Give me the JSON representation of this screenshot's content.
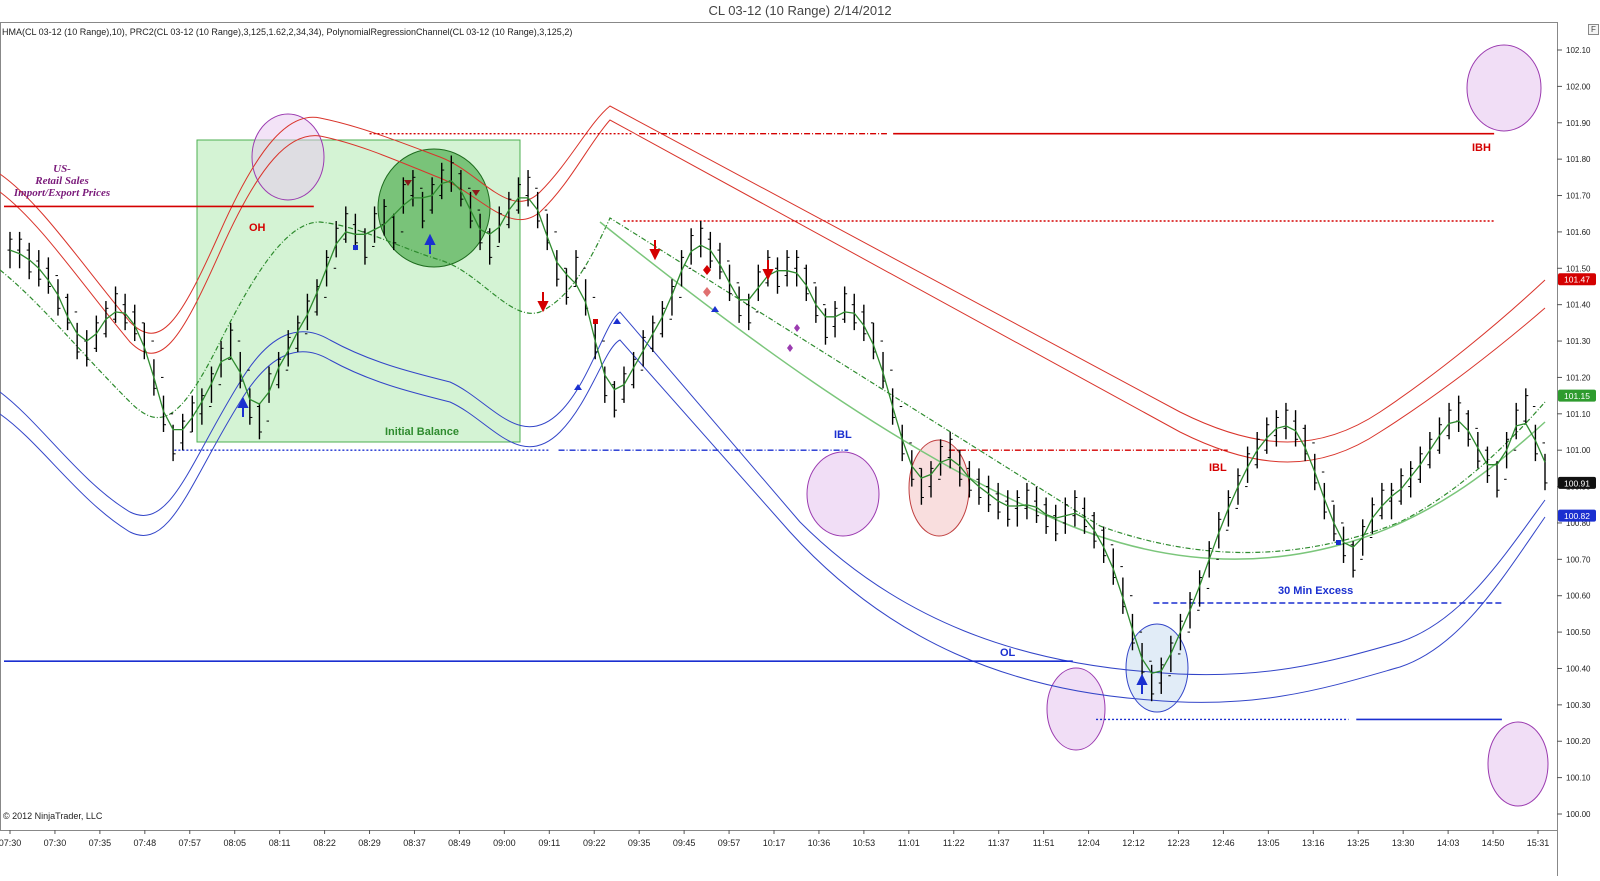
{
  "window": {
    "title": "CL 03-12 (10 Range)  2/14/2012",
    "corner_button": "F"
  },
  "indicator_label": "HMA(CL 03-12 (10 Range),10), PRC2(CL 03-12 (10 Range),3,125,1.62,2,34,34), PolynomialRegressionChannel(CL 03-12 (10 Range),3,125,2)",
  "copyright": "© 2012 NinjaTrader, LLC",
  "colors": {
    "bar": "#000000",
    "hma": "#2e8b2e",
    "upper_channel": "#d9342b",
    "lower_channel": "#3345c8",
    "regression": "#2e8b2e",
    "level_red": "#d40000",
    "level_blue": "#1a2fd0",
    "ib_fill": "#c6efc6",
    "ib_border": "#4caf50",
    "highlight_purple": "#e8c8f0",
    "highlight_green": "#2e9b2e",
    "highlight_red": "#f5c8c8",
    "highlight_blue": "#c8dcf0"
  },
  "chart_data": {
    "type": "bar",
    "subtype": "ohlc-range-bars",
    "instrument": "CL 03-12 (10 Range)",
    "date": "2/14/2012",
    "ylim": [
      100.0,
      102.15
    ],
    "y_ticks": [
      "100.00",
      "100.10",
      "100.20",
      "100.30",
      "100.40",
      "100.50",
      "100.60",
      "100.70",
      "100.80",
      "100.90",
      "101.00",
      "101.10",
      "101.20",
      "101.30",
      "101.40",
      "101.50",
      "101.60",
      "101.70",
      "101.80",
      "101.90",
      "102.00",
      "102.10"
    ],
    "x_ticks": [
      "07:30",
      "07:30",
      "07:35",
      "07:48",
      "07:57",
      "08:05",
      "08:11",
      "08:22",
      "08:29",
      "08:37",
      "08:49",
      "09:00",
      "09:11",
      "09:22",
      "09:35",
      "09:45",
      "09:57",
      "10:17",
      "10:36",
      "10:53",
      "11:01",
      "11:22",
      "11:37",
      "11:51",
      "12:04",
      "12:12",
      "12:23",
      "12:46",
      "13:05",
      "13:16",
      "13:25",
      "13:30",
      "14:03",
      "14:50",
      "15:31"
    ],
    "price_labels": [
      {
        "text": "101.47",
        "value": 101.47,
        "color": "#d40000"
      },
      {
        "text": "101.15",
        "value": 101.15,
        "color": "#2e9b2e"
      },
      {
        "text": "100.91",
        "value": 100.91,
        "color": "#111111"
      },
      {
        "text": "100.82",
        "value": 100.82,
        "color": "#1a2fd0"
      }
    ],
    "bar_centers": [
      101.55,
      101.55,
      101.52,
      101.5,
      101.48,
      101.42,
      101.38,
      101.3,
      101.28,
      101.32,
      101.36,
      101.4,
      101.38,
      101.35,
      101.3,
      101.2,
      101.1,
      101.02,
      101.05,
      101.1,
      101.12,
      101.18,
      101.25,
      101.3,
      101.22,
      101.12,
      101.08,
      101.18,
      101.22,
      101.28,
      101.32,
      101.38,
      101.42,
      101.5,
      101.58,
      101.62,
      101.6,
      101.56,
      101.62,
      101.64,
      101.6,
      101.7,
      101.72,
      101.66,
      101.7,
      101.74,
      101.76,
      101.72,
      101.66,
      101.6,
      101.56,
      101.62,
      101.66,
      101.7,
      101.72,
      101.66,
      101.6,
      101.5,
      101.45,
      101.5,
      101.42,
      101.3,
      101.18,
      101.14,
      101.18,
      101.22,
      101.28,
      101.32,
      101.36,
      101.42,
      101.5,
      101.56,
      101.58,
      101.55,
      101.52,
      101.46,
      101.4,
      101.38,
      101.46,
      101.5,
      101.48,
      101.5,
      101.5,
      101.46,
      101.4,
      101.34,
      101.36,
      101.4,
      101.38,
      101.35,
      101.3,
      101.22,
      101.12,
      101.02,
      100.95,
      100.9,
      100.92,
      100.98,
      101.0,
      100.95,
      100.92,
      100.9,
      100.88,
      100.86,
      100.84,
      100.84,
      100.86,
      100.85,
      100.82,
      100.8,
      100.82,
      100.84,
      100.82,
      100.78,
      100.74,
      100.68,
      100.6,
      100.5,
      100.42,
      100.36,
      100.38,
      100.44,
      100.5,
      100.56,
      100.62,
      100.7,
      100.78,
      100.84,
      100.9,
      100.96,
      101.0,
      101.04,
      101.06,
      101.08,
      101.06,
      101.02,
      100.94,
      100.86,
      100.8,
      100.74,
      100.7,
      100.76,
      100.82,
      100.86,
      100.86,
      100.9,
      100.92,
      100.96,
      101.0,
      101.04,
      101.08,
      101.1,
      101.06,
      101.0,
      100.96,
      100.92,
      101.0,
      101.08,
      101.12,
      101.02,
      100.94
    ],
    "levels": [
      {
        "name": "US-Retail-Sales",
        "value": 101.67,
        "color": "#d40000",
        "x_from": 0.0,
        "x_to": 0.2,
        "style": "solid"
      },
      {
        "name": "OH-dotted",
        "value": 101.87,
        "color": "#d40000",
        "x_from": 0.236,
        "x_to": 0.405,
        "style": "dotted"
      },
      {
        "name": "OH-dashdot",
        "value": 101.87,
        "color": "#d40000",
        "x_from": 0.41,
        "x_to": 0.57,
        "style": "dashdot"
      },
      {
        "name": "IBH",
        "value": 101.87,
        "color": "#d40000",
        "x_from": 0.574,
        "x_to": 0.962,
        "style": "solid"
      },
      {
        "name": "mid-red",
        "value": 101.63,
        "color": "#d40000",
        "x_from": 0.4,
        "x_to": 0.962,
        "style": "dotted"
      },
      {
        "name": "IBL-left",
        "value": 101.0,
        "color": "#1a2fd0",
        "x_from": 0.11,
        "x_to": 0.352,
        "style": "dotted"
      },
      {
        "name": "IBL-right",
        "value": 101.0,
        "color": "#1a2fd0",
        "x_from": 0.358,
        "x_to": 0.545,
        "style": "dashdot"
      },
      {
        "name": "IBL-red",
        "value": 101.0,
        "color": "#d40000",
        "x_from": 0.61,
        "x_to": 0.79,
        "style": "dashdot"
      },
      {
        "name": "30min-excess",
        "value": 100.58,
        "color": "#1a2fd0",
        "x_from": 0.742,
        "x_to": 0.967,
        "style": "dashed"
      },
      {
        "name": "OL",
        "value": 100.42,
        "color": "#1a2fd0",
        "x_from": 0.0,
        "x_to": 0.69,
        "style": "solid"
      },
      {
        "name": "low-dotted",
        "value": 100.26,
        "color": "#1a2fd0",
        "x_from": 0.705,
        "x_to": 0.868,
        "style": "dotted"
      },
      {
        "name": "low-solid",
        "value": 100.26,
        "color": "#1a2fd0",
        "x_from": 0.873,
        "x_to": 0.967,
        "style": "solid"
      }
    ],
    "annotations": [
      {
        "text": "US-",
        "color": "#7a1a7a",
        "style": "bold-italic"
      },
      {
        "text": "Retail Sales",
        "color": "#7a1a7a",
        "style": "bold-italic"
      },
      {
        "text": "Import/Export Prices",
        "color": "#7a1a7a",
        "style": "bold-italic"
      },
      {
        "text": "OH",
        "color": "#d40000",
        "style": "bold"
      },
      {
        "text": "Initial Balance",
        "color": "#2e8b2e",
        "style": "bold"
      },
      {
        "text": "IBL",
        "color": "#1a2fd0",
        "style": "bold"
      },
      {
        "text": "IBL",
        "color": "#d40000",
        "style": "bold"
      },
      {
        "text": "IBH",
        "color": "#d40000",
        "style": "bold"
      },
      {
        "text": "30 Min Excess",
        "color": "#1a2fd0",
        "style": "bold"
      },
      {
        "text": "OL",
        "color": "#1a2fd0",
        "style": "bold"
      }
    ],
    "grid": false,
    "legend": "none"
  }
}
